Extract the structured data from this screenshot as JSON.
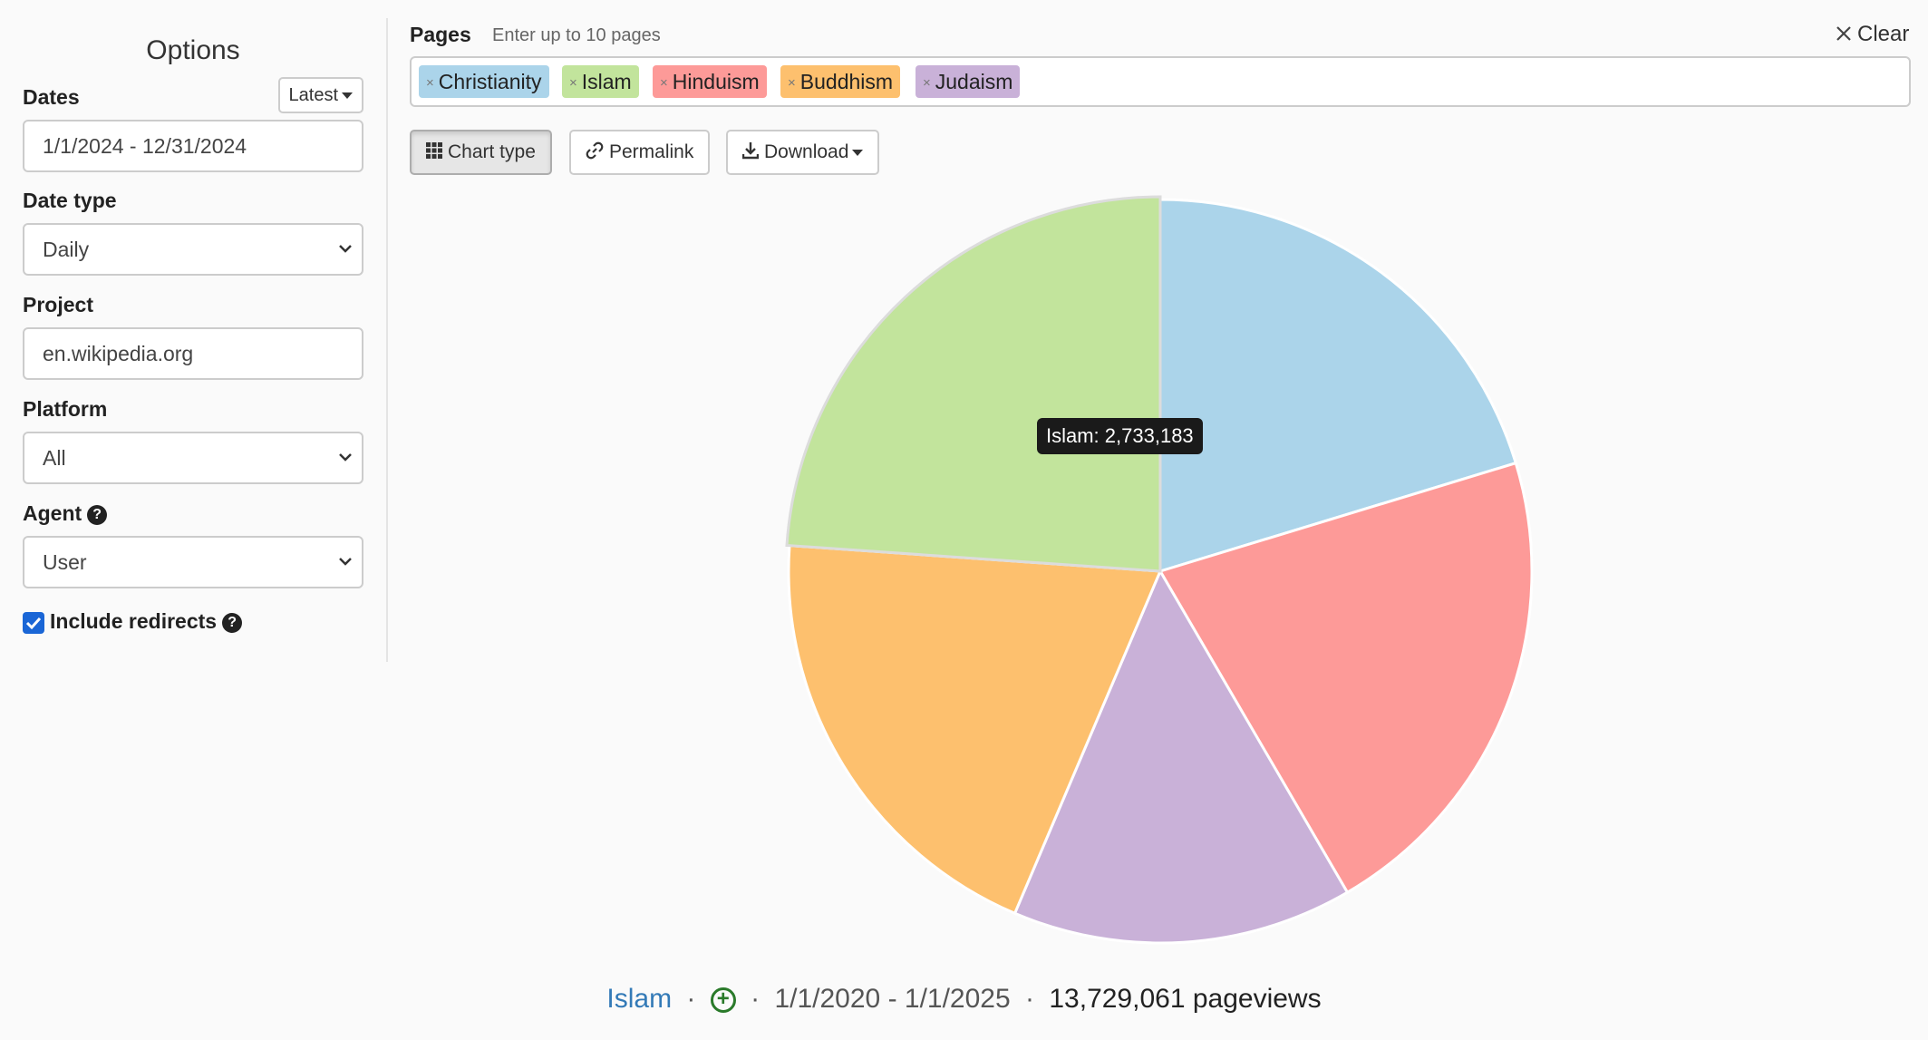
{
  "options": {
    "title": "Options",
    "dates_label": "Dates",
    "latest_button": "Latest",
    "dates_value": "1/1/2024 - 12/31/2024",
    "date_type_label": "Date type",
    "date_type_value": "Daily",
    "project_label": "Project",
    "project_value": "en.wikipedia.org",
    "platform_label": "Platform",
    "platform_value": "All",
    "agent_label": "Agent",
    "agent_value": "User",
    "help_icon": "question-circle-icon",
    "include_redirects_label": "Include redirects",
    "include_redirects_checked": true
  },
  "pages": {
    "label": "Pages",
    "hint": "Enter up to 10 pages",
    "clear_label": "Clear",
    "tags": [
      {
        "name": "Christianity",
        "color": "#abd4ea"
      },
      {
        "name": "Islam",
        "color": "#c2e49c"
      },
      {
        "name": "Hinduism",
        "color": "#fd9a98"
      },
      {
        "name": "Buddhism",
        "color": "#fdc06e"
      },
      {
        "name": "Judaism",
        "color": "#c9b1d8"
      }
    ]
  },
  "toolbar": {
    "chart_type_label": "Chart type",
    "permalink_label": "Permalink",
    "download_label": "Download"
  },
  "chart_data": {
    "type": "pie",
    "categories": [
      "Christianity",
      "Hinduism",
      "Judaism",
      "Buddhism",
      "Islam"
    ],
    "values": [
      0.203,
      0.213,
      0.148,
      0.197,
      0.239
    ],
    "colors": [
      "#abd4ea",
      "#fd9a98",
      "#c9b1d8",
      "#fdc06e",
      "#c2e49c"
    ],
    "highlighted": "Islam"
  },
  "tooltip": {
    "text": "Islam: 2,733,183"
  },
  "footer": {
    "page": "Islam",
    "dot1": "·",
    "dot2": "·",
    "date_range": "1/1/2020 - 1/1/2025",
    "dot3": "·",
    "pageviews": "13,729,061 pageviews"
  }
}
